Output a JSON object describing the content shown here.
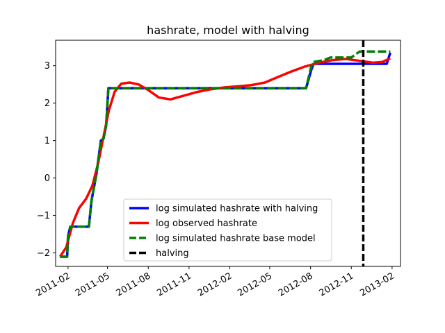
{
  "chart_data": {
    "type": "line",
    "title": "hashrate, model with halving",
    "xlabel": "",
    "ylabel": "",
    "xlim": [
      "2011-01-04",
      "2013-02-20"
    ],
    "ylim": [
      -2.36,
      3.68
    ],
    "xtick_labels": [
      "2011-02",
      "2011-05",
      "2011-08",
      "2011-11",
      "2012-02",
      "2012-05",
      "2012-08",
      "2012-11",
      "2013-02"
    ],
    "xticks": [
      "2011-02-01",
      "2011-05-01",
      "2011-08-01",
      "2011-11-01",
      "2012-02-01",
      "2012-05-01",
      "2012-08-01",
      "2012-11-01",
      "2013-02-01"
    ],
    "yticks": [
      -2,
      -1,
      0,
      1,
      2,
      3
    ],
    "ytick_labels": [
      "−2",
      "−1",
      "0",
      "1",
      "2",
      "3"
    ],
    "legend_position": "lower-center",
    "grid": false,
    "series": [
      {
        "name": "log simulated hashrate with halving",
        "color": "#0000ff",
        "style": "solid",
        "points": [
          [
            "2011-01-14",
            -2.1
          ],
          [
            "2011-01-30",
            -2.1
          ],
          [
            "2011-02-01",
            -1.55
          ],
          [
            "2011-02-06",
            -1.3
          ],
          [
            "2011-03-20",
            -1.3
          ],
          [
            "2011-03-26",
            -0.6
          ],
          [
            "2011-04-06",
            0.1
          ],
          [
            "2011-04-16",
            1.0
          ],
          [
            "2011-04-22",
            1.05
          ],
          [
            "2011-04-28",
            1.4
          ],
          [
            "2011-05-03",
            2.4
          ],
          [
            "2011-07-20",
            2.4
          ],
          [
            "2012-07-18",
            2.4
          ],
          [
            "2012-07-22",
            2.4
          ],
          [
            "2012-08-03",
            2.9
          ],
          [
            "2012-08-08",
            3.05
          ],
          [
            "2012-11-01",
            3.05
          ],
          [
            "2013-01-20",
            3.05
          ],
          [
            "2013-01-28",
            3.35
          ]
        ]
      },
      {
        "name": "log observed hashrate",
        "color": "#ff0000",
        "style": "solid",
        "points": [
          [
            "2011-01-14",
            -2.1
          ],
          [
            "2011-01-28",
            -1.85
          ],
          [
            "2011-02-12",
            -1.2
          ],
          [
            "2011-02-26",
            -0.8
          ],
          [
            "2011-03-14",
            -0.55
          ],
          [
            "2011-03-28",
            -0.2
          ],
          [
            "2011-04-10",
            0.4
          ],
          [
            "2011-04-22",
            1.1
          ],
          [
            "2011-05-04",
            1.8
          ],
          [
            "2011-05-17",
            2.3
          ],
          [
            "2011-06-01",
            2.52
          ],
          [
            "2011-06-20",
            2.55
          ],
          [
            "2011-07-10",
            2.5
          ],
          [
            "2011-08-01",
            2.35
          ],
          [
            "2011-08-25",
            2.15
          ],
          [
            "2011-09-20",
            2.1
          ],
          [
            "2011-10-20",
            2.2
          ],
          [
            "2011-11-20",
            2.3
          ],
          [
            "2011-12-20",
            2.37
          ],
          [
            "2012-01-20",
            2.42
          ],
          [
            "2012-02-20",
            2.45
          ],
          [
            "2012-03-20",
            2.48
          ],
          [
            "2012-04-20",
            2.55
          ],
          [
            "2012-05-20",
            2.7
          ],
          [
            "2012-06-20",
            2.85
          ],
          [
            "2012-07-20",
            2.98
          ],
          [
            "2012-08-20",
            3.08
          ],
          [
            "2012-09-20",
            3.15
          ],
          [
            "2012-10-20",
            3.18
          ],
          [
            "2012-11-20",
            3.13
          ],
          [
            "2012-12-20",
            3.08
          ],
          [
            "2013-01-10",
            3.1
          ],
          [
            "2013-01-28",
            3.2
          ]
        ]
      },
      {
        "name": "log simulated hashrate base model",
        "color": "#008000",
        "style": "dashed",
        "points": [
          [
            "2011-01-14",
            -2.1
          ],
          [
            "2011-01-30",
            -2.1
          ],
          [
            "2011-02-01",
            -1.55
          ],
          [
            "2011-02-06",
            -1.3
          ],
          [
            "2011-03-20",
            -1.3
          ],
          [
            "2011-03-26",
            -0.6
          ],
          [
            "2011-04-06",
            0.1
          ],
          [
            "2011-04-16",
            1.0
          ],
          [
            "2011-04-22",
            1.05
          ],
          [
            "2011-04-28",
            1.4
          ],
          [
            "2011-05-03",
            2.4
          ],
          [
            "2011-07-20",
            2.4
          ],
          [
            "2012-07-18",
            2.4
          ],
          [
            "2012-07-22",
            2.4
          ],
          [
            "2012-08-03",
            3.0
          ],
          [
            "2012-08-08",
            3.1
          ],
          [
            "2012-09-01",
            3.15
          ],
          [
            "2012-09-15",
            3.22
          ],
          [
            "2012-11-01",
            3.22
          ],
          [
            "2012-11-20",
            3.38
          ],
          [
            "2013-01-28",
            3.38
          ]
        ]
      },
      {
        "name": "halving",
        "color": "#000000",
        "style": "dashed",
        "vline_x": "2012-11-28"
      }
    ]
  }
}
